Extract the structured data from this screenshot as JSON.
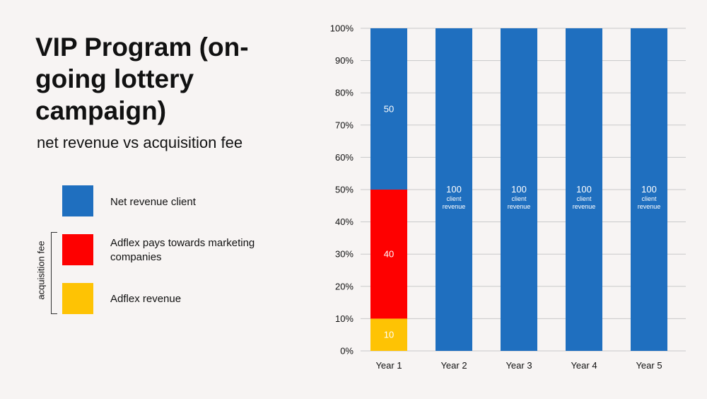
{
  "title": "VIP Program (on-going lottery campaign)",
  "subtitle": "net revenue vs acquisition fee",
  "legend": {
    "items": [
      {
        "label": "Net revenue client",
        "color": "#1f6fbf"
      },
      {
        "label": "Adflex pays towards marketing companies",
        "color": "#fe0000"
      },
      {
        "label": "Adflex revenue",
        "color": "#fec304"
      }
    ],
    "group_label": "acquisition fee"
  },
  "chart_data": {
    "type": "bar",
    "stacked": true,
    "categories": [
      "Year 1",
      "Year 2",
      "Year 3",
      "Year 4",
      "Year 5"
    ],
    "series": [
      {
        "name": "Adflex revenue",
        "values": [
          10,
          0,
          0,
          0,
          0
        ],
        "color": "#fec304"
      },
      {
        "name": "Adflex pays towards marketing companies",
        "values": [
          40,
          0,
          0,
          0,
          0
        ],
        "color": "#fe0000"
      },
      {
        "name": "Net revenue client",
        "values": [
          50,
          100,
          100,
          100,
          100
        ],
        "color": "#1f6fbf"
      }
    ],
    "data_labels": [
      {
        "category": "Year 1",
        "series": "Adflex revenue",
        "text": "10"
      },
      {
        "category": "Year 1",
        "series": "Adflex pays towards marketing companies",
        "text": "40"
      },
      {
        "category": "Year 1",
        "series": "Net revenue client",
        "text": "50"
      },
      {
        "category": "Year 2",
        "series": "Net revenue client",
        "text": "100",
        "subtext": "client revenue"
      },
      {
        "category": "Year 3",
        "series": "Net revenue client",
        "text": "100",
        "subtext": "client revenue"
      },
      {
        "category": "Year 4",
        "series": "Net revenue client",
        "text": "100",
        "subtext": "client revenue"
      },
      {
        "category": "Year 5",
        "series": "Net revenue client",
        "text": "100",
        "subtext": "client revenue"
      }
    ],
    "y_ticks": [
      "0%",
      "10%",
      "20%",
      "30%",
      "40%",
      "50%",
      "60%",
      "70%",
      "80%",
      "90%",
      "100%"
    ],
    "ylim": [
      0,
      100
    ],
    "grid": true,
    "title": "",
    "xlabel": "",
    "ylabel": ""
  }
}
